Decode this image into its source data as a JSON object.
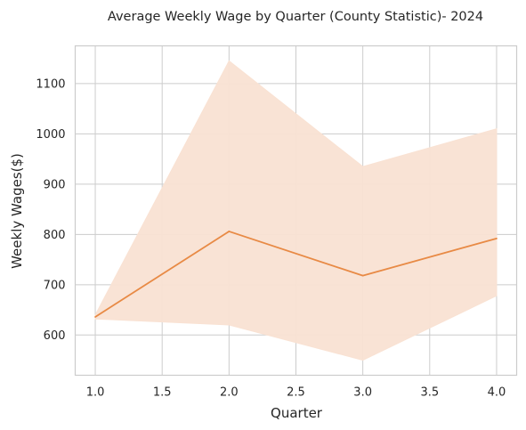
{
  "chart_data": {
    "type": "line",
    "title": "Average Weekly Wage by Quarter (County Statistic)- 2024",
    "xlabel": "Quarter",
    "ylabel": "Weekly Wages($)",
    "xlim": [
      0.85,
      4.15
    ],
    "ylim": [
      520,
      1175
    ],
    "xticks": [
      "1.0",
      "1.5",
      "2.0",
      "2.5",
      "3.0",
      "3.5",
      "4.0"
    ],
    "yticks": [
      "600",
      "700",
      "800",
      "900",
      "1000",
      "1100"
    ],
    "grid": true,
    "legend": "none",
    "series": [
      {
        "x": [
          1,
          2,
          3,
          4
        ],
        "y": [
          636,
          806,
          718,
          792
        ],
        "ci_lower": [
          632,
          620,
          550,
          678
        ],
        "ci_upper": [
          640,
          1145,
          935,
          1010
        ],
        "line_color": "#e88a45",
        "band_color": "#f9e2d3"
      }
    ]
  }
}
